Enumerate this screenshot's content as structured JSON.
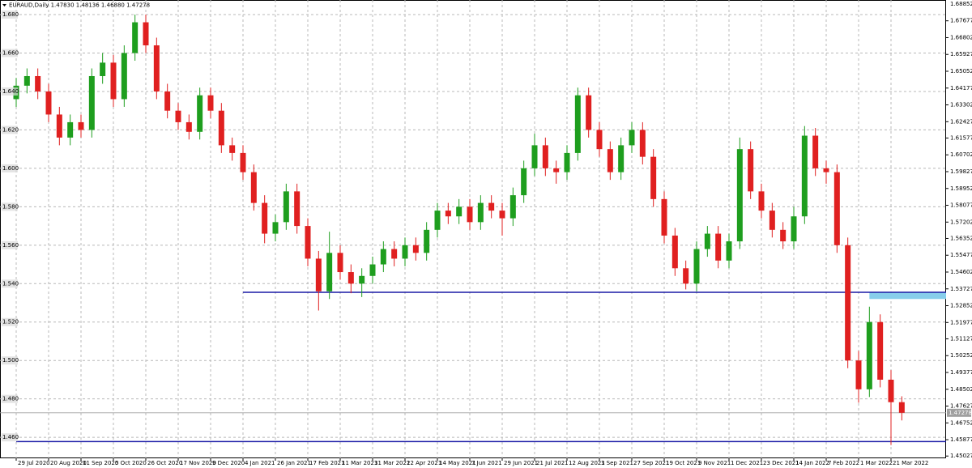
{
  "chart_data": {
    "type": "candlestick",
    "title": "EURAUD,Daily  1.47830 1.48136 1.46880 1.47278",
    "up_color": "#1e9e1e",
    "down_color": "#e02020",
    "grid": true,
    "ylim": [
      1.4491,
      1.6876
    ],
    "yticks": [
      {
        "value": 1.68,
        "label": "1.680"
      },
      {
        "value": 1.66,
        "label": "1.660"
      },
      {
        "value": 1.64,
        "label": "1.640"
      },
      {
        "value": 1.62,
        "label": "1.620"
      },
      {
        "value": 1.6,
        "label": "1.600"
      },
      {
        "value": 1.58,
        "label": "1.580"
      },
      {
        "value": 1.56,
        "label": "1.560"
      },
      {
        "value": 1.54,
        "label": "1.540"
      },
      {
        "value": 1.52,
        "label": "1.520"
      },
      {
        "value": 1.5,
        "label": "1.500"
      },
      {
        "value": 1.48,
        "label": "1.480"
      },
      {
        "value": 1.46,
        "label": "1.460"
      }
    ],
    "right_ticks": [
      1.68852,
      1.67677,
      1.66802,
      1.65927,
      1.65052,
      1.64177,
      1.63302,
      1.62427,
      1.61577,
      1.60702,
      1.59827,
      1.58952,
      1.58077,
      1.57202,
      1.56352,
      1.55477,
      1.54602,
      1.53727,
      1.52852,
      1.51977,
      1.51127,
      1.50252,
      1.49377,
      1.48502,
      1.47627,
      1.46752,
      1.45877,
      1.45027
    ],
    "last_price": 1.47278,
    "hlines": [
      {
        "value": 1.5355,
        "color": "#1a1aa6",
        "from_index": 21
      },
      {
        "value": 1.4578,
        "color": "#1a1aa6",
        "from_index": 0
      }
    ],
    "zone": {
      "from": 1.532,
      "to": 1.5355,
      "color": "#87ceeb",
      "from_index": 79
    },
    "categories": [
      "29 Jul 2020",
      null,
      null,
      "20 Aug 2020",
      null,
      null,
      "11 Sep 2020",
      null,
      null,
      "5 Oct 2020",
      null,
      null,
      "26 Oct 2020",
      null,
      null,
      "17 Nov 2020",
      null,
      null,
      "9 Dec 2020",
      null,
      null,
      "4 Jan 2021",
      null,
      null,
      "26 Jan 2021",
      null,
      null,
      "17 Feb 2021",
      null,
      null,
      "11 Mar 2021",
      null,
      null,
      "31 Mar 2021",
      null,
      null,
      "22 Apr 2021",
      null,
      null,
      "14 May 2021",
      null,
      null,
      "7 Jun 2021",
      null,
      null,
      "29 Jun 2021",
      null,
      null,
      "21 Jul 2021",
      null,
      null,
      "12 Aug 2021",
      null,
      null,
      "3 Sep 2021",
      null,
      null,
      "27 Sep 2021",
      null,
      null,
      "19 Oct 2021",
      null,
      null,
      "9 Nov 2021",
      null,
      null,
      "1 Dec 2021",
      null,
      null,
      "23 Dec 2021",
      null,
      null,
      "14 Jan 2022",
      null,
      null,
      "7 Feb 2022",
      null,
      null,
      "1 Mar 2022",
      null,
      null,
      "21 Mar 2022",
      null
    ],
    "open": [
      1.636,
      1.643,
      1.648,
      1.64,
      1.628,
      1.616,
      1.624,
      1.62,
      1.648,
      1.655,
      1.636,
      1.66,
      1.676,
      1.664,
      1.64,
      1.63,
      1.624,
      1.619,
      1.638,
      1.63,
      1.612,
      1.608,
      1.598,
      1.582,
      1.566,
      1.572,
      1.588,
      1.57,
      1.553,
      1.536,
      1.556,
      1.546,
      1.54,
      1.544,
      1.55,
      1.558,
      1.553,
      1.56,
      1.556,
      1.568,
      1.578,
      1.575,
      1.58,
      1.572,
      1.582,
      1.578,
      1.574,
      1.586,
      1.6,
      1.612,
      1.6,
      1.598,
      1.608,
      1.638,
      1.62,
      1.61,
      1.598,
      1.612,
      1.62,
      1.606,
      1.584,
      1.565,
      1.548,
      1.54,
      1.558,
      1.566,
      1.552,
      1.562,
      1.61,
      1.588,
      1.578,
      1.568,
      1.562,
      1.575,
      1.617,
      1.6,
      1.598,
      1.56,
      1.5,
      1.485,
      1.52,
      1.49,
      1.4783
    ],
    "high": [
      1.647,
      1.652,
      1.652,
      1.644,
      1.632,
      1.628,
      1.628,
      1.652,
      1.66,
      1.659,
      1.664,
      1.68,
      1.68,
      1.668,
      1.644,
      1.634,
      1.628,
      1.642,
      1.642,
      1.634,
      1.616,
      1.612,
      1.602,
      1.586,
      1.576,
      1.592,
      1.592,
      1.574,
      1.557,
      1.567,
      1.56,
      1.55,
      1.548,
      1.554,
      1.562,
      1.562,
      1.564,
      1.564,
      1.572,
      1.582,
      1.582,
      1.584,
      1.584,
      1.586,
      1.586,
      1.582,
      1.59,
      1.604,
      1.618,
      1.616,
      1.604,
      1.612,
      1.642,
      1.642,
      1.624,
      1.614,
      1.616,
      1.624,
      1.624,
      1.61,
      1.588,
      1.569,
      1.552,
      1.562,
      1.57,
      1.57,
      1.566,
      1.616,
      1.614,
      1.592,
      1.582,
      1.572,
      1.58,
      1.622,
      1.621,
      1.604,
      1.602,
      1.564,
      1.505,
      1.528,
      1.524,
      1.495,
      1.48136
    ],
    "low": [
      1.632,
      1.639,
      1.636,
      1.624,
      1.612,
      1.612,
      1.616,
      1.616,
      1.644,
      1.632,
      1.632,
      1.656,
      1.66,
      1.636,
      1.626,
      1.62,
      1.615,
      1.615,
      1.626,
      1.608,
      1.604,
      1.594,
      1.578,
      1.561,
      1.562,
      1.568,
      1.566,
      1.549,
      1.526,
      1.532,
      1.542,
      1.535,
      1.533,
      1.54,
      1.546,
      1.549,
      1.549,
      1.552,
      1.552,
      1.564,
      1.571,
      1.571,
      1.568,
      1.568,
      1.574,
      1.565,
      1.57,
      1.582,
      1.596,
      1.596,
      1.592,
      1.594,
      1.604,
      1.616,
      1.606,
      1.594,
      1.594,
      1.608,
      1.602,
      1.58,
      1.561,
      1.544,
      1.537,
      1.536,
      1.554,
      1.548,
      1.548,
      1.558,
      1.584,
      1.574,
      1.564,
      1.558,
      1.558,
      1.571,
      1.596,
      1.592,
      1.556,
      1.496,
      1.478,
      1.481,
      1.486,
      1.456,
      1.4688
    ],
    "close": [
      1.643,
      1.648,
      1.64,
      1.628,
      1.616,
      1.624,
      1.62,
      1.648,
      1.655,
      1.636,
      1.66,
      1.676,
      1.664,
      1.64,
      1.63,
      1.624,
      1.619,
      1.638,
      1.63,
      1.612,
      1.608,
      1.598,
      1.582,
      1.566,
      1.572,
      1.588,
      1.57,
      1.553,
      1.536,
      1.556,
      1.546,
      1.54,
      1.544,
      1.55,
      1.558,
      1.553,
      1.56,
      1.556,
      1.568,
      1.578,
      1.575,
      1.58,
      1.572,
      1.582,
      1.578,
      1.574,
      1.586,
      1.6,
      1.612,
      1.6,
      1.598,
      1.608,
      1.638,
      1.62,
      1.61,
      1.598,
      1.612,
      1.62,
      1.606,
      1.584,
      1.565,
      1.548,
      1.54,
      1.558,
      1.566,
      1.552,
      1.562,
      1.61,
      1.588,
      1.578,
      1.568,
      1.562,
      1.575,
      1.617,
      1.6,
      1.598,
      1.56,
      1.5,
      1.485,
      1.52,
      1.49,
      1.4783,
      1.47278
    ]
  }
}
